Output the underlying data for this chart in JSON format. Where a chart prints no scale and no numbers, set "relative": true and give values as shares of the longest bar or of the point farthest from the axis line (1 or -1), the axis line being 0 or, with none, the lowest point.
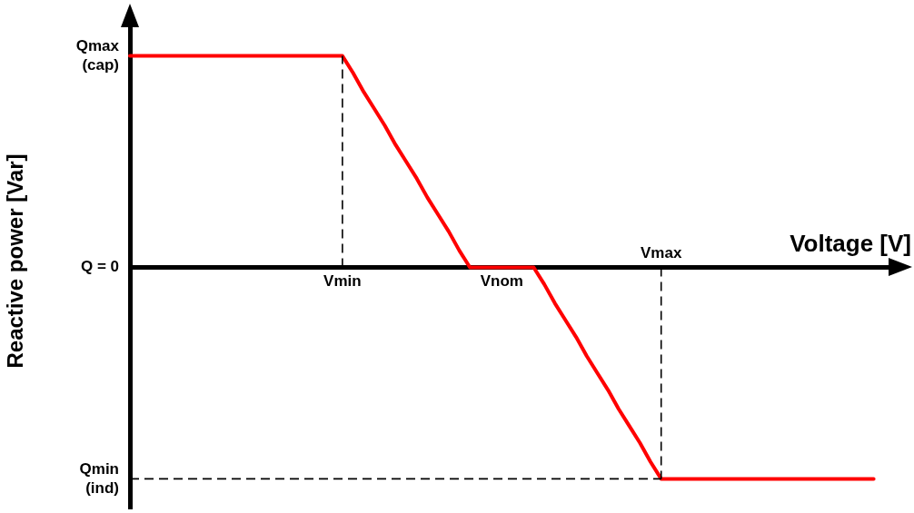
{
  "chart_data": {
    "type": "line",
    "xlabel": "Voltage [V]",
    "ylabel": "Reactive power [Var]",
    "relative": true,
    "categories": [
      null,
      null,
      null,
      null,
      null,
      null,
      null,
      null,
      null,
      null,
      null,
      null,
      null,
      null,
      null,
      null,
      null,
      null,
      null,
      null,
      "Vmin",
      null,
      null,
      null,
      null,
      null,
      null,
      null,
      null,
      null,
      null,
      null,
      null,
      null,
      null,
      "Vnom",
      null,
      null,
      null,
      null,
      null,
      null,
      null,
      null,
      null,
      null,
      null,
      null,
      null,
      null,
      "Vmax",
      null,
      null,
      null,
      null,
      null,
      null,
      null,
      null,
      null,
      null,
      null,
      null,
      null,
      null,
      null,
      null,
      null,
      null,
      null,
      null,
      null,
      null
    ],
    "series": [
      {
        "color": "#ff0000",
        "values": [
          1,
          1,
          1,
          1,
          1,
          1,
          1,
          1,
          1,
          1,
          1,
          1,
          1,
          1,
          1,
          1,
          1,
          1,
          1,
          1,
          1,
          0.92,
          0.83,
          0.75,
          0.67,
          0.58,
          0.5,
          0.42,
          0.33,
          0.25,
          0.17,
          0.08,
          0,
          0,
          0,
          0,
          0,
          0,
          0,
          -0.08,
          -0.17,
          -0.25,
          -0.33,
          -0.42,
          -0.5,
          -0.58,
          -0.67,
          -0.75,
          -0.83,
          -0.92,
          -1,
          -1,
          -1,
          -1,
          -1,
          -1,
          -1,
          -1,
          -1,
          -1,
          -1,
          -1,
          -1,
          -1,
          -1,
          -1,
          -1,
          -1,
          -1,
          -1,
          -1,
          null,
          null
        ]
      }
    ],
    "annotations": [
      "Qmax (cap)",
      "Q = 0",
      "Qmin (ind)"
    ],
    "grid": false,
    "legend": false,
    "marker": "none",
    "line_style": "solid",
    "ref_lines": [
      {
        "axis": "x",
        "value": "Vmin",
        "line_style": "dashed"
      },
      {
        "axis": "x",
        "value": "Vmax",
        "line_style": "dashed"
      },
      {
        "axis": "y",
        "value": -1,
        "line_style": "dashed"
      }
    ]
  }
}
